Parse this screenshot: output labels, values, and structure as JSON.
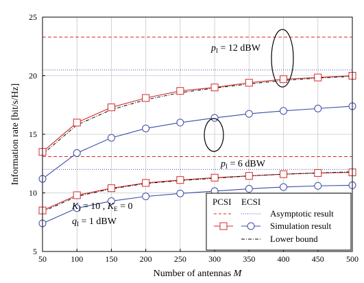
{
  "chart_data": {
    "type": "line",
    "xlabel_prefix": "Number of antennas ",
    "xlabel_var": "M",
    "ylabel": "Information rate [bit/s/Hz]",
    "xlim": [
      50,
      500
    ],
    "ylim": [
      5,
      25
    ],
    "xticks": [
      50,
      100,
      150,
      200,
      250,
      300,
      350,
      400,
      450,
      500
    ],
    "yticks": [
      5,
      10,
      15,
      20,
      25
    ],
    "grid": true,
    "x": [
      50,
      100,
      150,
      200,
      250,
      300,
      350,
      400,
      450,
      500
    ],
    "colors": {
      "pcsi": "#d62728",
      "ecsi": "#3b4aa8",
      "lower": "#000000"
    },
    "series": [
      {
        "group": "p12",
        "kind": "simulation",
        "csi": "PCSI",
        "values": [
          13.5,
          16.0,
          17.3,
          18.1,
          18.7,
          19.0,
          19.4,
          19.7,
          19.85,
          20.0
        ]
      },
      {
        "group": "p12",
        "kind": "lower",
        "values": [
          13.3,
          15.8,
          17.1,
          17.95,
          18.55,
          18.95,
          19.3,
          19.6,
          19.8,
          19.95
        ]
      },
      {
        "group": "p12",
        "kind": "simulation",
        "csi": "ECSI",
        "values": [
          11.2,
          13.4,
          14.7,
          15.5,
          16.0,
          16.4,
          16.75,
          17.0,
          17.2,
          17.4
        ]
      },
      {
        "group": "p6",
        "kind": "simulation",
        "csi": "PCSI",
        "values": [
          8.5,
          9.8,
          10.4,
          10.85,
          11.1,
          11.3,
          11.45,
          11.6,
          11.7,
          11.75
        ]
      },
      {
        "group": "p6",
        "kind": "lower",
        "values": [
          8.4,
          9.7,
          10.35,
          10.8,
          11.05,
          11.25,
          11.45,
          11.6,
          11.7,
          11.8
        ]
      },
      {
        "group": "p6",
        "kind": "simulation",
        "csi": "ECSI",
        "values": [
          7.4,
          8.7,
          9.3,
          9.7,
          9.95,
          10.15,
          10.35,
          10.5,
          10.6,
          10.65
        ]
      }
    ],
    "asymptotes": [
      {
        "csi": "PCSI",
        "group": "p12",
        "value": 23.3
      },
      {
        "csi": "ECSI",
        "group": "p12",
        "value": 20.5
      },
      {
        "csi": "PCSI",
        "group": "p6",
        "value": 13.1
      },
      {
        "csi": "ECSI",
        "group": "p6",
        "value": 12.0
      }
    ],
    "annotations": {
      "p12": {
        "sym": "p",
        "sub": "I",
        "rest": " = 12 dBW"
      },
      "p6": {
        "sym": "p",
        "sub": "I",
        "rest": " = 6 dBW"
      },
      "k_line": {
        "k1": "K",
        "k1sub": "I",
        "k1val": " = 10 , ",
        "k2": "K",
        "k2sub": "E",
        "k2val": " = 0"
      },
      "q_line": {
        "sym": "q",
        "sub": "I",
        "rest": " = 1 dBW"
      }
    },
    "legend": {
      "header_pcsi": "PCSI",
      "header_ecsi": "ECSI",
      "entries": [
        "Asymptotic result",
        "Simulation result",
        "Lower bound"
      ],
      "placement": "bottom-right"
    }
  }
}
